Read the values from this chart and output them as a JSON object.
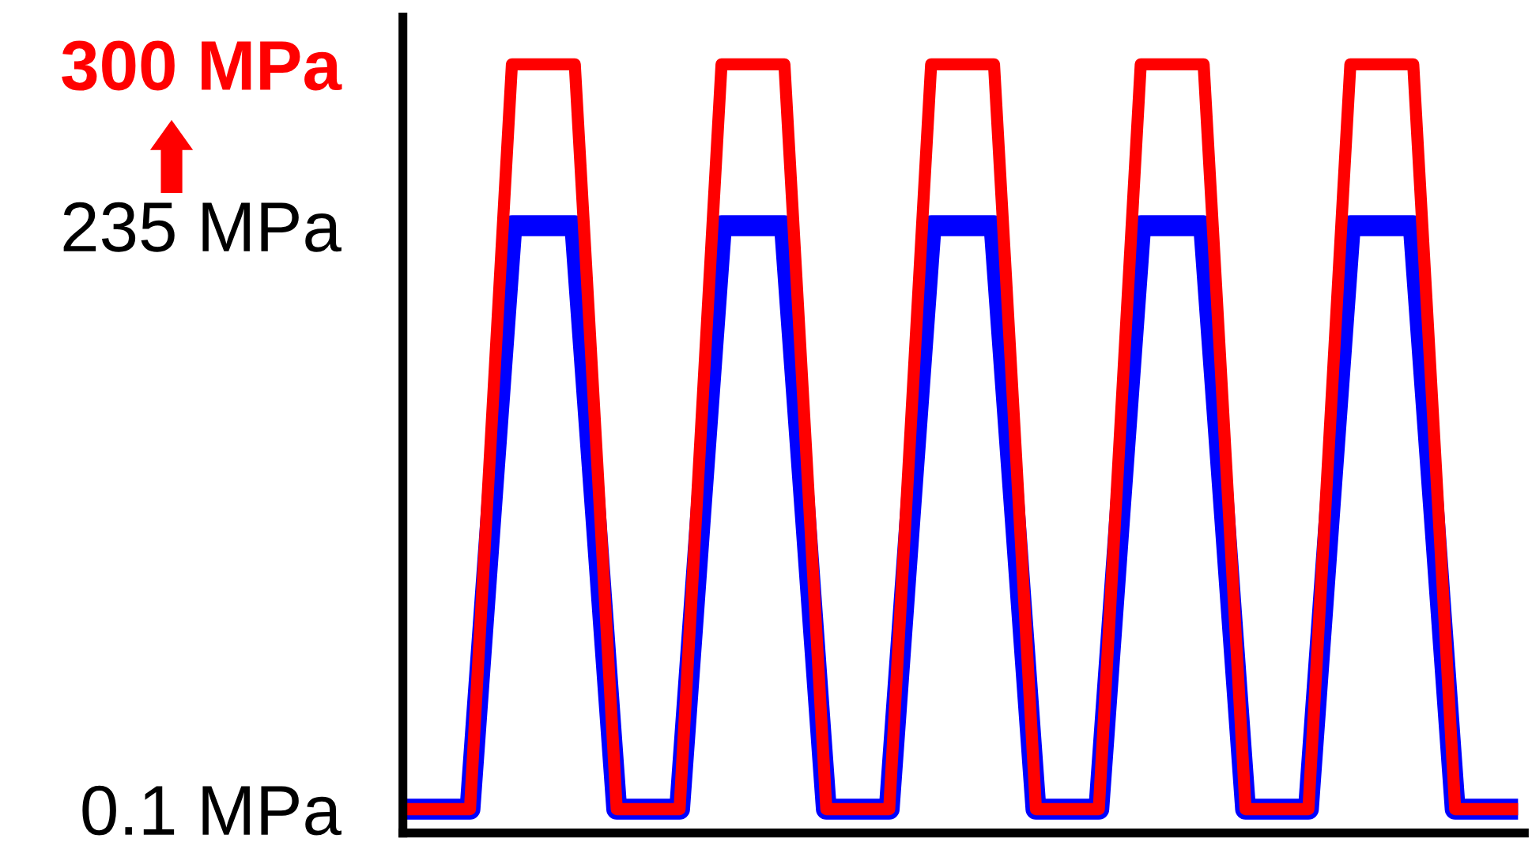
{
  "chart_data": {
    "type": "line",
    "categories": [
      null,
      null,
      null,
      null,
      null,
      null,
      null,
      null,
      null,
      null,
      null,
      null,
      null,
      null,
      null,
      null,
      null,
      null,
      null,
      null,
      null,
      null,
      null,
      null,
      null,
      null,
      null,
      null,
      null,
      null,
      null,
      null,
      null,
      null,
      null,
      null,
      null,
      null,
      null,
      null,
      null,
      null,
      null,
      null,
      null,
      null,
      null,
      null,
      null,
      null,
      null,
      null,
      null,
      null
    ],
    "series": [
      {
        "color": "#0000ff",
        "values": [
          0.1,
          0.1,
          0.1,
          0.1,
          118,
          235,
          235,
          235,
          235,
          118,
          0.1,
          0.1,
          0.1,
          0.1,
          118,
          235,
          235,
          235,
          235,
          118,
          0.1,
          0.1,
          0.1,
          0.1,
          118,
          235,
          235,
          235,
          235,
          118,
          0.1,
          0.1,
          0.1,
          0.1,
          118,
          235,
          235,
          235,
          235,
          118,
          0.1,
          0.1,
          0.1,
          0.1,
          118,
          235,
          235,
          235,
          235,
          118,
          0.1,
          0.1,
          0.1,
          0.1
        ]
      },
      {
        "color": "#ff0000",
        "values": [
          0.1,
          0.1,
          0.1,
          0.1,
          150,
          300,
          300,
          300,
          300,
          150,
          0.1,
          0.1,
          0.1,
          0.1,
          150,
          300,
          300,
          300,
          300,
          150,
          0.1,
          0.1,
          0.1,
          0.1,
          150,
          300,
          300,
          300,
          300,
          150,
          0.1,
          0.1,
          0.1,
          0.1,
          150,
          300,
          300,
          300,
          300,
          150,
          0.1,
          0.1,
          0.1,
          0.1,
          150,
          300,
          300,
          300,
          300,
          150,
          0.1,
          0.1,
          0.1,
          0.1
        ]
      }
    ],
    "ylim": [
      -9.5,
      319
    ],
    "yticks": [
      {
        "value": 0.1,
        "label": "0.1 MPa"
      },
      {
        "value": 235,
        "label": "235 MPa"
      },
      {
        "value": 300,
        "label": "300 MPa"
      }
    ],
    "tick_labels": "y",
    "grid": false,
    "legend": false,
    "marker": "none",
    "line_style": "solid"
  }
}
